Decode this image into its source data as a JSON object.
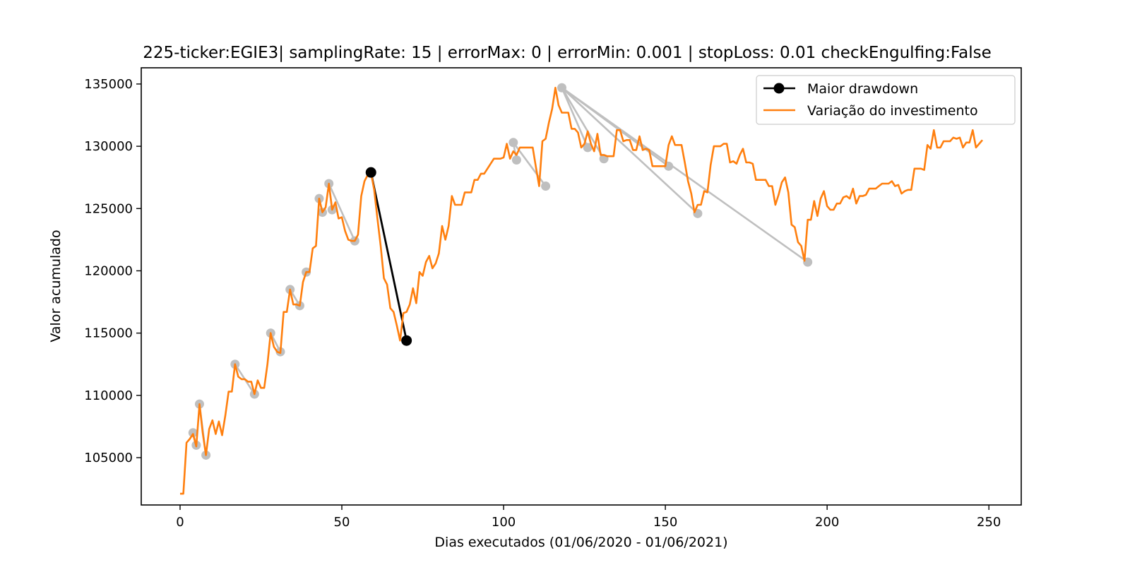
{
  "chart_data": {
    "type": "line",
    "title": "225-ticker:EGIE3| samplingRate: 15 | errorMax: 0 | errorMin: 0.001 | stopLoss: 0.01 checkEngulfing:False",
    "xlabel": "Dias executados (01/06/2020 - 01/06/2021)",
    "ylabel": "Valor acumulado",
    "xlim": [
      -12,
      260
    ],
    "ylim": [
      101200,
      136300
    ],
    "xticks": [
      0,
      50,
      100,
      150,
      200,
      250
    ],
    "yticks": [
      105000,
      110000,
      115000,
      120000,
      125000,
      130000,
      135000
    ],
    "legend_position": "top-right",
    "grid": false,
    "colors": {
      "investment": "#ff7f0e",
      "drawdown": "#000000",
      "swings": "#bfbfbf"
    },
    "series": [
      {
        "name": "Variação do investimento",
        "role": "investment",
        "x": [
          0,
          1,
          2,
          3,
          4,
          5,
          6,
          7,
          8,
          9,
          10,
          11,
          12,
          13,
          14,
          15,
          16,
          17,
          18,
          19,
          20,
          21,
          22,
          23,
          24,
          25,
          26,
          27,
          28,
          29,
          30,
          31,
          32,
          33,
          34,
          35,
          36,
          37,
          38,
          39,
          40,
          41,
          42,
          43,
          44,
          45,
          46,
          47,
          48,
          49,
          50,
          51,
          52,
          53,
          54,
          55,
          56,
          57,
          58,
          59,
          60,
          61,
          62,
          63,
          64,
          65,
          66,
          67,
          68,
          69,
          70,
          71,
          72,
          73,
          74,
          75,
          76,
          77,
          78,
          79,
          80,
          81,
          82,
          83,
          84,
          85,
          86,
          87,
          88,
          89,
          90,
          91,
          92,
          93,
          94,
          95,
          96,
          97,
          98,
          99,
          100,
          101,
          102,
          103,
          104,
          105,
          106,
          107,
          108,
          109,
          110,
          111,
          112,
          113,
          114,
          115,
          116,
          117,
          118,
          119,
          120,
          121,
          122,
          123,
          124,
          125,
          126,
          127,
          128,
          129,
          130,
          131,
          132,
          133,
          134,
          135,
          136,
          137,
          138,
          139,
          140,
          141,
          142,
          143,
          144,
          145,
          146,
          147,
          148,
          149,
          150,
          151,
          152,
          153,
          154,
          155,
          156,
          157,
          158,
          159,
          160,
          161,
          162,
          163,
          164,
          165,
          166,
          167,
          168,
          169,
          170,
          171,
          172,
          173,
          174,
          175,
          176,
          177,
          178,
          179,
          180,
          181,
          182,
          183,
          184,
          185,
          186,
          187,
          188,
          189,
          190,
          191,
          192,
          193,
          194,
          195,
          196,
          197,
          198,
          199,
          200,
          201,
          202,
          203,
          204,
          205,
          206,
          207,
          208,
          209,
          210,
          211,
          212,
          213,
          214,
          215,
          216,
          217,
          218,
          219,
          220,
          221,
          222,
          223,
          224,
          225,
          226,
          227,
          228,
          229,
          230,
          231,
          232,
          233,
          234,
          235,
          236,
          237,
          238,
          239,
          240,
          241,
          242,
          243,
          244,
          245,
          246,
          247,
          248
        ],
        "y": [
          102100,
          102100,
          106200,
          106500,
          106900,
          105900,
          109300,
          107000,
          105200,
          107300,
          108000,
          106900,
          107900,
          106800,
          108400,
          110300,
          110300,
          112500,
          111500,
          111300,
          111300,
          111100,
          111100,
          110100,
          111200,
          110600,
          110600,
          112500,
          115000,
          113900,
          113500,
          113400,
          116700,
          116700,
          118500,
          117300,
          117300,
          117200,
          119100,
          119900,
          119900,
          121800,
          122000,
          125800,
          124700,
          125100,
          127000,
          124900,
          125500,
          124200,
          124300,
          123200,
          122500,
          122400,
          122400,
          122900,
          126000,
          127200,
          127700,
          127900,
          126500,
          124200,
          122000,
          119400,
          118900,
          117000,
          116700,
          115600,
          114400,
          116600,
          116700,
          117300,
          118600,
          117400,
          119900,
          119600,
          120700,
          121200,
          120200,
          120600,
          121400,
          123600,
          122500,
          123600,
          126000,
          125300,
          125300,
          125300,
          126300,
          126300,
          126300,
          127300,
          127300,
          127800,
          127800,
          128200,
          128600,
          129000,
          129000,
          129000,
          129100,
          130200,
          129000,
          129600,
          129300,
          129900,
          129900,
          129900,
          129900,
          129900,
          128300,
          126800,
          130400,
          130600,
          131900,
          133000,
          134700,
          133300,
          132700,
          132700,
          132700,
          131400,
          131400,
          131100,
          129900,
          130200,
          131200,
          130200,
          129600,
          131000,
          129300,
          129300,
          129200,
          129200,
          129200,
          131300,
          131300,
          130400,
          130500,
          130500,
          129700,
          129700,
          130800,
          129700,
          129800,
          129700,
          128400,
          128400,
          128400,
          128400,
          128400,
          130100,
          130800,
          130100,
          130100,
          130100,
          128700,
          127200,
          126200,
          124700,
          125300,
          125300,
          126400,
          126300,
          128500,
          130000,
          130000,
          130000,
          130200,
          130200,
          128700,
          128800,
          128600,
          129300,
          129800,
          128700,
          128700,
          128600,
          127300,
          127300,
          127300,
          127300,
          126800,
          126800,
          125300,
          126100,
          127100,
          127500,
          126300,
          123700,
          123500,
          122300,
          122000,
          120800,
          124100,
          124100,
          125600,
          124400,
          125800,
          126400,
          125200,
          124900,
          124900,
          125400,
          125400,
          125900,
          126000,
          125800,
          126600,
          125400,
          126000,
          126000,
          126100,
          126600,
          126600,
          126600,
          126800,
          127000,
          127000,
          127000,
          127200,
          126800,
          126900,
          126200,
          126400,
          126500,
          126500,
          128200,
          128200,
          128200,
          128100,
          130100,
          129800,
          131300,
          129900,
          129900,
          130400,
          130400,
          130400,
          130700,
          130600,
          130700,
          129900,
          130300,
          130300,
          131300,
          129900,
          130200,
          130500
        ]
      },
      {
        "name": "Maior drawdown",
        "role": "drawdown",
        "x": [
          59,
          70
        ],
        "y": [
          127900,
          114400
        ]
      },
      {
        "role": "swings",
        "x": [
          4,
          5,
          6,
          8,
          17,
          23,
          28,
          31,
          34,
          37,
          39,
          43,
          44,
          46,
          47,
          54,
          59,
          70,
          103,
          104,
          113,
          118,
          126,
          131,
          151,
          160,
          194
        ],
        "y": [
          107000,
          106000,
          109300,
          105200,
          112500,
          110100,
          115000,
          113500,
          118500,
          117200,
          119900,
          125800,
          124700,
          127000,
          124900,
          122400,
          127900,
          114400,
          130300,
          128900,
          126800,
          134700,
          129900,
          129000,
          128400,
          124600,
          120700
        ],
        "segments": [
          [
            4,
            5
          ],
          [
            6,
            8
          ],
          [
            17,
            23
          ],
          [
            28,
            31
          ],
          [
            34,
            37
          ],
          [
            43,
            44
          ],
          [
            46,
            47
          ],
          [
            46,
            54
          ],
          [
            103,
            104
          ],
          [
            103,
            113
          ],
          [
            118,
            126
          ],
          [
            118,
            131
          ],
          [
            118,
            151
          ],
          [
            118,
            160
          ],
          [
            118,
            194
          ]
        ]
      }
    ]
  }
}
